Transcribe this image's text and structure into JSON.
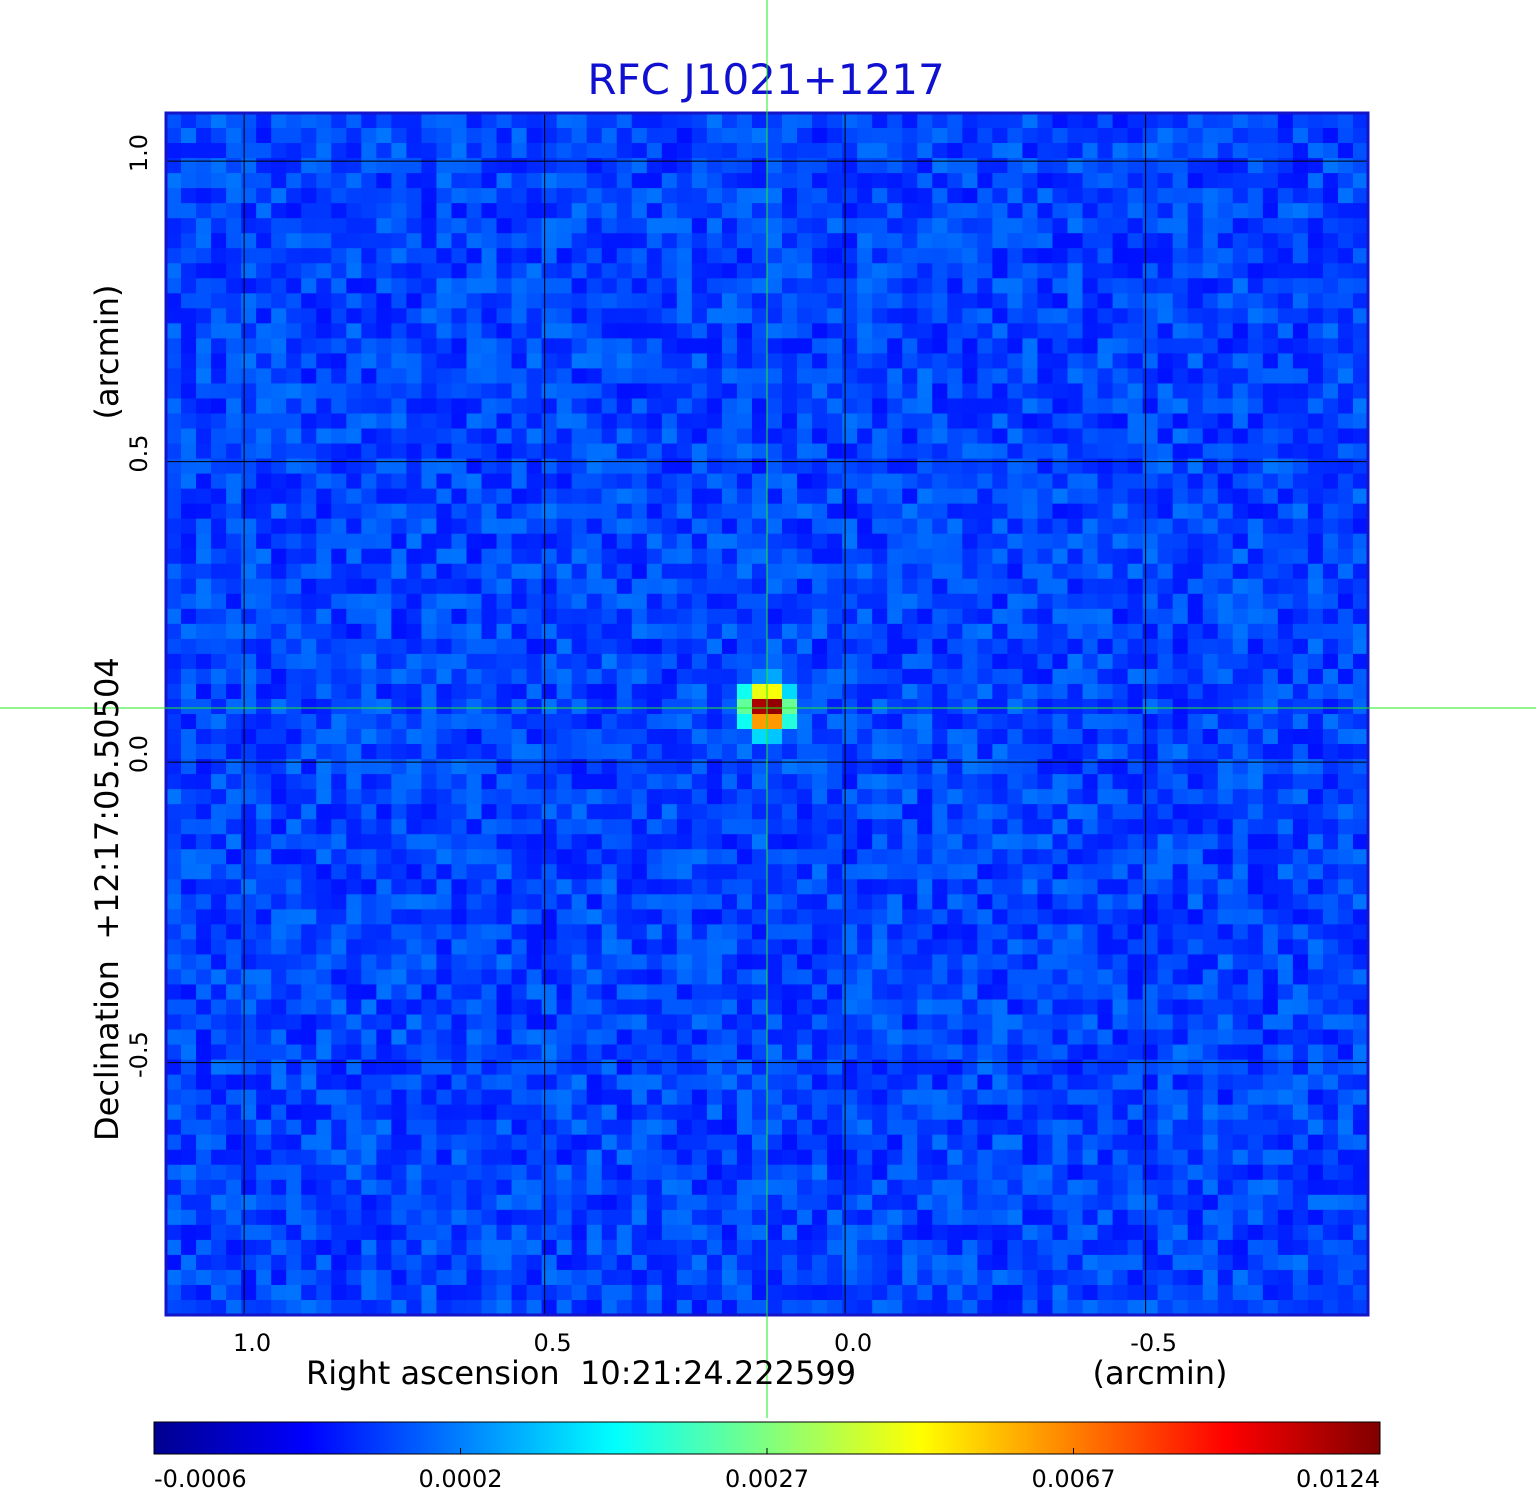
{
  "chart_data": {
    "type": "heatmap",
    "title": "RFC J1021+1217",
    "xlabel": "Right ascension  10:21:24.222599",
    "xunit": "(arcmin)",
    "ylabel": "Declination  +12:17:05.50504",
    "yunit": "(arcmin)",
    "x_ticks": [
      1.0,
      0.5,
      0.0,
      -0.5
    ],
    "x_tick_labels": [
      "1.0",
      "0.5",
      "0.0",
      "-0.5"
    ],
    "y_ticks": [
      1.0,
      0.5,
      0.0,
      -0.5
    ],
    "y_tick_labels": [
      "1.0",
      "0.5",
      "0.0",
      "-0.5"
    ],
    "xlim": [
      1.13,
      -0.87
    ],
    "ylim": [
      -0.92,
      1.08
    ],
    "grid": true,
    "colorscale": "jet",
    "colorbar_ticks": [
      "-0.0006",
      "0.0002",
      "0.0027",
      "0.0067",
      "0.0124"
    ],
    "source": {
      "x": 0.13,
      "y": 0.09,
      "peak": 0.0124
    },
    "crosshair": {
      "x": 0.13,
      "y": 0.09
    },
    "colors": {
      "title": "#1010d0",
      "frame": "#1515c8",
      "crosshair": "#22ee22",
      "grid": "#000000"
    }
  }
}
